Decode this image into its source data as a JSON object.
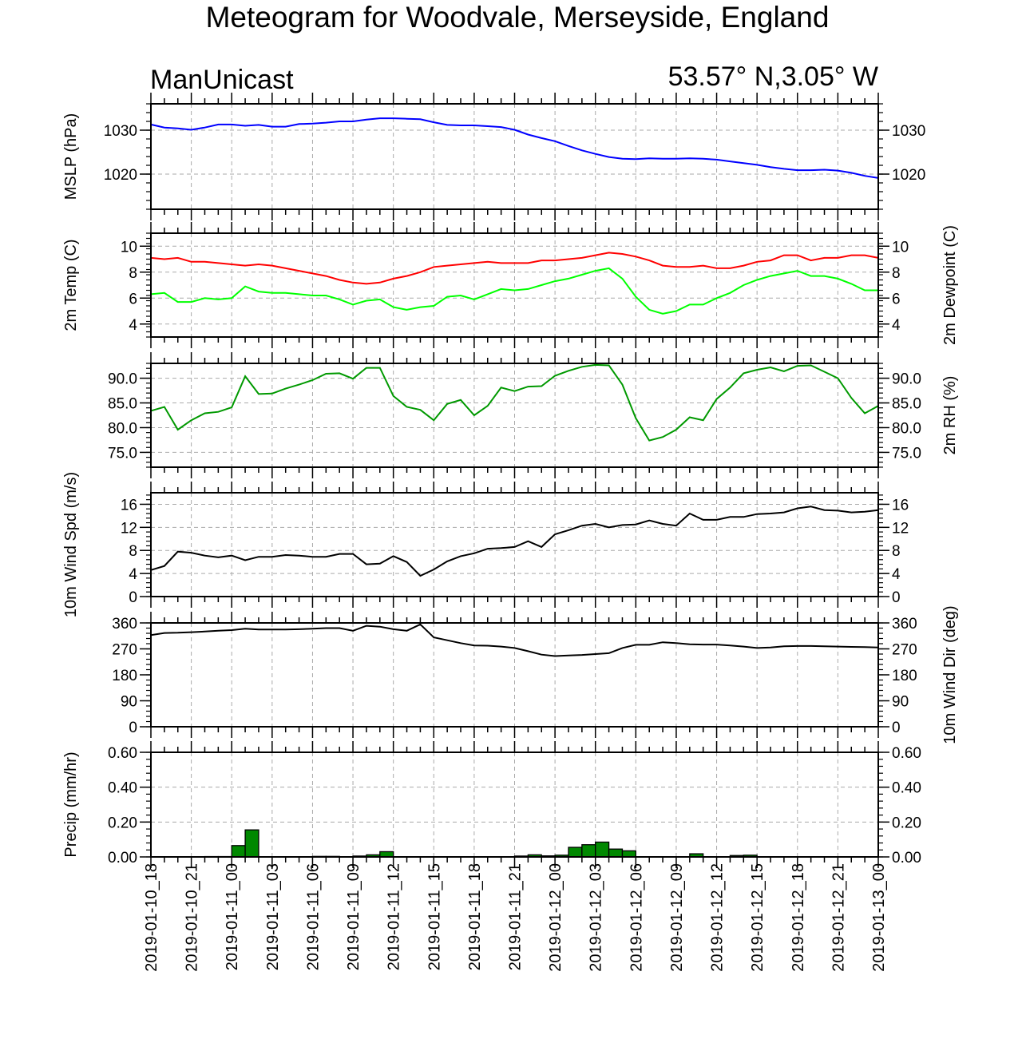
{
  "title": "Meteogram for Woodvale, Merseyside, England",
  "subtitle_left": "ManUnicast",
  "subtitle_right": "53.57° N,3.05° W",
  "x_tick_labels": [
    "2019-01-10_18",
    "2019-01-10_21",
    "2019-01-11_00",
    "2019-01-11_03",
    "2019-01-11_06",
    "2019-01-11_09",
    "2019-01-11_12",
    "2019-01-11_15",
    "2019-01-11_18",
    "2019-01-11_21",
    "2019-01-12_00",
    "2019-01-12_03",
    "2019-01-12_06",
    "2019-01-12_09",
    "2019-01-12_12",
    "2019-01-12_15",
    "2019-01-12_18",
    "2019-01-12_21",
    "2019-01-13_00"
  ],
  "chart_data": [
    {
      "type": "line",
      "ylabel_left": "MSLP (hPa)",
      "ylabel_right": "",
      "ylim": [
        1012,
        1036
      ],
      "yticks": [
        1020,
        1030
      ],
      "tick_labels": [
        "1020",
        "1030"
      ],
      "grid": true,
      "x_hours": [
        0,
        1,
        2,
        3,
        4,
        5,
        6,
        7,
        8,
        9,
        10,
        11,
        12,
        13,
        14,
        15,
        16,
        17,
        18,
        19,
        20,
        21,
        22,
        23,
        24,
        25,
        26,
        27,
        28,
        29,
        30,
        31,
        32,
        33,
        34,
        35,
        36,
        37,
        38,
        39,
        40,
        41,
        42,
        43,
        44,
        45,
        46,
        47,
        48,
        49,
        50,
        51,
        52,
        53,
        54
      ],
      "series": [
        {
          "color": "#0000ff",
          "values": [
            1031.3,
            1030.6,
            1030.4,
            1030.1,
            1030.6,
            1031.3,
            1031.3,
            1031.0,
            1031.2,
            1030.8,
            1030.8,
            1031.4,
            1031.5,
            1031.7,
            1032.0,
            1032.0,
            1032.4,
            1032.7,
            1032.7,
            1032.6,
            1032.5,
            1031.8,
            1031.2,
            1031.1,
            1031.1,
            1030.9,
            1030.7,
            1030.1,
            1029.0,
            1028.2,
            1027.5,
            1026.4,
            1025.4,
            1024.6,
            1023.9,
            1023.5,
            1023.4,
            1023.6,
            1023.5,
            1023.5,
            1023.6,
            1023.5,
            1023.3,
            1022.9,
            1022.5,
            1022.1,
            1021.6,
            1021.2,
            1020.9,
            1020.9,
            1021.0,
            1020.8,
            1020.3,
            1019.6,
            1019.1
          ]
        }
      ]
    },
    {
      "type": "line",
      "ylabel_left": "2m Temp (C)",
      "ylabel_right": "2m Dewpoint (C)",
      "ylim": [
        3,
        11
      ],
      "yticks": [
        4,
        6,
        8,
        10
      ],
      "tick_labels": [
        "4",
        "6",
        "8",
        "10"
      ],
      "grid": true,
      "x_hours": [
        0,
        1,
        2,
        3,
        4,
        5,
        6,
        7,
        8,
        9,
        10,
        11,
        12,
        13,
        14,
        15,
        16,
        17,
        18,
        19,
        20,
        21,
        22,
        23,
        24,
        25,
        26,
        27,
        28,
        29,
        30,
        31,
        32,
        33,
        34,
        35,
        36,
        37,
        38,
        39,
        40,
        41,
        42,
        43,
        44,
        45,
        46,
        47,
        48,
        49,
        50,
        51,
        52,
        53,
        54
      ],
      "series": [
        {
          "color": "#ff0000",
          "values": [
            9.1,
            9.0,
            9.1,
            8.8,
            8.8,
            8.7,
            8.6,
            8.5,
            8.6,
            8.5,
            8.3,
            8.1,
            7.9,
            7.7,
            7.4,
            7.2,
            7.1,
            7.2,
            7.5,
            7.7,
            8.0,
            8.4,
            8.5,
            8.6,
            8.7,
            8.8,
            8.7,
            8.7,
            8.7,
            8.9,
            8.9,
            9.0,
            9.1,
            9.3,
            9.5,
            9.4,
            9.2,
            8.9,
            8.5,
            8.4,
            8.4,
            8.5,
            8.3,
            8.3,
            8.5,
            8.8,
            8.9,
            9.3,
            9.3,
            8.9,
            9.1,
            9.1,
            9.3,
            9.3,
            9.1
          ]
        },
        {
          "color": "#00ff00",
          "values": [
            6.3,
            6.4,
            5.7,
            5.7,
            6.0,
            5.9,
            6.0,
            6.9,
            6.5,
            6.4,
            6.4,
            6.3,
            6.2,
            6.2,
            5.9,
            5.5,
            5.8,
            5.9,
            5.3,
            5.1,
            5.3,
            5.4,
            6.1,
            6.2,
            5.9,
            6.3,
            6.7,
            6.6,
            6.7,
            7.0,
            7.3,
            7.5,
            7.8,
            8.1,
            8.3,
            7.5,
            6.1,
            5.1,
            4.8,
            5.0,
            5.5,
            5.5,
            6.0,
            6.4,
            7.0,
            7.4,
            7.7,
            7.9,
            8.1,
            7.7,
            7.7,
            7.5,
            7.1,
            6.6,
            6.6
          ]
        }
      ]
    },
    {
      "type": "line",
      "ylabel_left": "",
      "ylabel_right": "2m RH (%)",
      "ylim": [
        72,
        93
      ],
      "yticks": [
        75,
        80,
        85,
        90
      ],
      "tick_labels": [
        "75.0",
        "80.0",
        "85.0",
        "90.0"
      ],
      "grid": true,
      "x_hours": [
        0,
        1,
        2,
        3,
        4,
        5,
        6,
        7,
        8,
        9,
        10,
        11,
        12,
        13,
        14,
        15,
        16,
        17,
        18,
        19,
        20,
        21,
        22,
        23,
        24,
        25,
        26,
        27,
        28,
        29,
        30,
        31,
        32,
        33,
        34,
        35,
        36,
        37,
        38,
        39,
        40,
        41,
        42,
        43,
        44,
        45,
        46,
        47,
        48,
        49,
        50,
        51,
        52,
        53,
        54
      ],
      "series": [
        {
          "color": "#009900",
          "values": [
            83.4,
            84.2,
            79.6,
            81.5,
            82.9,
            83.2,
            84.1,
            90.4,
            86.8,
            86.9,
            87.9,
            88.7,
            89.6,
            90.9,
            91.0,
            89.9,
            92.1,
            92.1,
            86.4,
            84.2,
            83.6,
            81.5,
            84.8,
            85.6,
            82.5,
            84.4,
            88.1,
            87.4,
            88.3,
            88.4,
            90.5,
            91.5,
            92.3,
            92.7,
            92.6,
            88.7,
            81.9,
            77.4,
            78.1,
            79.6,
            82.1,
            81.5,
            85.8,
            88.1,
            91.0,
            91.7,
            92.2,
            91.4,
            92.5,
            92.6,
            91.3,
            90.0,
            86.0,
            82.9,
            84.4
          ]
        }
      ]
    },
    {
      "type": "line",
      "ylabel_left": "10m Wind Spd (m/s)",
      "ylabel_right": "",
      "ylim": [
        0,
        18
      ],
      "yticks": [
        0,
        4,
        8,
        12,
        16
      ],
      "tick_labels": [
        "0",
        "4",
        "8",
        "12",
        "16"
      ],
      "grid": true,
      "x_hours": [
        0,
        1,
        2,
        3,
        4,
        5,
        6,
        7,
        8,
        9,
        10,
        11,
        12,
        13,
        14,
        15,
        16,
        17,
        18,
        19,
        20,
        21,
        22,
        23,
        24,
        25,
        26,
        27,
        28,
        29,
        30,
        31,
        32,
        33,
        34,
        35,
        36,
        37,
        38,
        39,
        40,
        41,
        42,
        43,
        44,
        45,
        46,
        47,
        48,
        49,
        50,
        51,
        52,
        53,
        54
      ],
      "series": [
        {
          "color": "#000000",
          "values": [
            4.6,
            5.3,
            7.8,
            7.6,
            7.1,
            6.8,
            7.1,
            6.3,
            6.9,
            6.9,
            7.2,
            7.1,
            6.9,
            6.9,
            7.4,
            7.4,
            5.6,
            5.7,
            7.0,
            6.0,
            3.6,
            4.7,
            6.1,
            7.0,
            7.5,
            8.3,
            8.4,
            8.6,
            9.6,
            8.6,
            10.8,
            11.5,
            12.3,
            12.6,
            12.0,
            12.4,
            12.5,
            13.2,
            12.6,
            12.3,
            14.4,
            13.3,
            13.3,
            13.8,
            13.8,
            14.3,
            14.4,
            14.6,
            15.3,
            15.6,
            15.0,
            14.9,
            14.6,
            14.7,
            15.0
          ]
        }
      ]
    },
    {
      "type": "line",
      "ylabel_left": "",
      "ylabel_right": "10m Wind Dir (deg)",
      "ylim": [
        0,
        360
      ],
      "yticks": [
        0,
        90,
        180,
        270,
        360
      ],
      "tick_labels": [
        "0",
        "90",
        "180",
        "270",
        "360"
      ],
      "grid": false,
      "x_hours": [
        0,
        1,
        2,
        3,
        4,
        5,
        6,
        7,
        8,
        9,
        10,
        11,
        12,
        13,
        14,
        15,
        16,
        17,
        18,
        19,
        20,
        21,
        22,
        23,
        24,
        25,
        26,
        27,
        28,
        29,
        30,
        31,
        32,
        33,
        34,
        35,
        36,
        37,
        38,
        39,
        40,
        41,
        42,
        43,
        44,
        45,
        46,
        47,
        48,
        49,
        50,
        51,
        52,
        53,
        54
      ],
      "series": [
        {
          "color": "#000000",
          "values": [
            318,
            325,
            326,
            328,
            330,
            333,
            335,
            340,
            337,
            337,
            337,
            338,
            340,
            342,
            342,
            333,
            350,
            347,
            338,
            333,
            355,
            310,
            300,
            290,
            282,
            281,
            278,
            273,
            262,
            250,
            245,
            247,
            249,
            252,
            255,
            273,
            284,
            284,
            293,
            290,
            286,
            285,
            285,
            282,
            278,
            273,
            275,
            279,
            280,
            280,
            279,
            278,
            277,
            276,
            275
          ]
        }
      ]
    },
    {
      "type": "bar",
      "ylabel_left": "Precip (mm/hr)",
      "ylabel_right": "",
      "ylim": [
        0,
        0.6
      ],
      "yticks": [
        0,
        0.2,
        0.4,
        0.6
      ],
      "tick_labels": [
        "0.00",
        "0.20",
        "0.40",
        "0.60"
      ],
      "grid": true,
      "x_hours": [
        0,
        1,
        2,
        3,
        4,
        5,
        6,
        7,
        8,
        9,
        10,
        11,
        12,
        13,
        14,
        15,
        16,
        17,
        18,
        19,
        20,
        21,
        22,
        23,
        24,
        25,
        26,
        27,
        28,
        29,
        30,
        31,
        32,
        33,
        34,
        35,
        36,
        37,
        38,
        39,
        40,
        41,
        42,
        43,
        44,
        45,
        46,
        47,
        48,
        49,
        50,
        51,
        52,
        53,
        54
      ],
      "series": [
        {
          "color": "#008800",
          "values": [
            0,
            0,
            0,
            0,
            0.002,
            0.002,
            0.065,
            0.155,
            0,
            0,
            0,
            0,
            0.003,
            0.003,
            0,
            0.005,
            0.012,
            0.03,
            0,
            0,
            0,
            0,
            0,
            0,
            0,
            0,
            0,
            0.005,
            0.012,
            0.006,
            0.01,
            0.055,
            0.07,
            0.085,
            0.045,
            0.035,
            0,
            0,
            0,
            0,
            0.018,
            0,
            0,
            0.008,
            0.01,
            0,
            0,
            0,
            0,
            0,
            0,
            0,
            0,
            0,
            0
          ]
        }
      ]
    }
  ]
}
